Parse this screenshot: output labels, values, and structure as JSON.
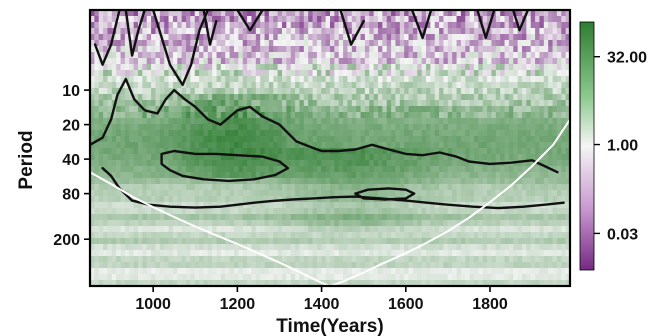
{
  "chart_data": {
    "type": "heatmap",
    "subtype": "wavelet power spectrum",
    "xlabel": "Time(Years)",
    "ylabel": "Period",
    "xlim": [
      850,
      1990
    ],
    "x_ticks": [
      1000,
      1200,
      1400,
      1600,
      1800
    ],
    "x_tick_labels": [
      "1000",
      "1200",
      "1400",
      "1600",
      "1800"
    ],
    "y_scale": "log",
    "y_reversed": true,
    "ylim": [
      2,
      512
    ],
    "y_ticks": [
      10,
      20,
      40,
      80,
      200
    ],
    "y_tick_labels": [
      "10",
      "20",
      "40",
      "80",
      "200"
    ],
    "colorbar": {
      "scale": "log",
      "ticks": [
        32.0,
        1.0,
        0.03
      ],
      "tick_labels": [
        "32.00",
        "1.00",
        "0.03"
      ],
      "colors": [
        "#2e7d32",
        "#f5f5f5",
        "#762a83"
      ]
    },
    "cone_of_influence": {
      "color": "#ffffff",
      "x": [
        850,
        900,
        950,
        1000,
        1050,
        1100,
        1150,
        1200,
        1250,
        1300,
        1350,
        1400,
        1420,
        1450,
        1500,
        1550,
        1600,
        1650,
        1700,
        1750,
        1800,
        1850,
        1900,
        1950,
        1990
      ],
      "period": [
        52,
        66,
        85,
        105,
        128,
        155,
        185,
        220,
        265,
        320,
        390,
        480,
        512,
        470,
        390,
        320,
        265,
        215,
        170,
        130,
        95,
        68,
        46,
        30,
        18
      ]
    },
    "significance_contours": [
      {
        "name": "high-frequency patches",
        "polylines": [
          [
            [
              862,
              4
            ],
            [
              880,
              6
            ],
            [
              900,
              4
            ],
            [
              920,
              2
            ]
          ],
          [
            [
              935,
              2
            ],
            [
              950,
              5
            ],
            [
              965,
              3
            ],
            [
              980,
              2
            ]
          ],
          [
            [
              1000,
              2
            ],
            [
              1040,
              6
            ],
            [
              1070,
              9
            ],
            [
              1090,
              6
            ],
            [
              1110,
              3
            ],
            [
              1130,
              2
            ]
          ],
          [
            [
              1120,
              2
            ],
            [
              1135,
              4
            ],
            [
              1150,
              2.5
            ]
          ],
          [
            [
              1200,
              2
            ],
            [
              1230,
              3
            ],
            [
              1260,
              2
            ]
          ],
          [
            [
              1445,
              2
            ],
            [
              1470,
              4
            ],
            [
              1500,
              2.5
            ]
          ],
          [
            [
              1615,
              2
            ],
            [
              1640,
              3.5
            ],
            [
              1660,
              2
            ]
          ],
          [
            [
              1770,
              2
            ],
            [
              1790,
              3.5
            ],
            [
              1810,
              2
            ]
          ],
          [
            [
              1855,
              2
            ],
            [
              1870,
              3
            ],
            [
              1890,
              2
            ]
          ]
        ]
      },
      {
        "name": "left region",
        "polylines": [
          [
            [
              850,
              30
            ],
            [
              880,
              26
            ],
            [
              900,
              18
            ],
            [
              915,
              11
            ],
            [
              935,
              8
            ],
            [
              955,
              12
            ],
            [
              980,
              15
            ],
            [
              1010,
              16
            ],
            [
              1030,
              12
            ],
            [
              1050,
              10
            ],
            [
              1075,
              12
            ],
            [
              1100,
              14
            ],
            [
              1130,
              18
            ],
            [
              1160,
              20
            ],
            [
              1200,
              15
            ],
            [
              1230,
              14
            ],
            [
              1260,
              17
            ],
            [
              1300,
              20
            ],
            [
              1340,
              28
            ],
            [
              1380,
              32
            ],
            [
              1400,
              34
            ],
            [
              1440,
              34
            ],
            [
              1480,
              33
            ],
            [
              1520,
              30
            ],
            [
              1560,
              33
            ],
            [
              1600,
              36
            ],
            [
              1640,
              37
            ],
            [
              1680,
              35
            ],
            [
              1720,
              38
            ],
            [
              1750,
              42
            ],
            [
              1800,
              44
            ],
            [
              1850,
              43
            ],
            [
              1900,
              41
            ],
            [
              1930,
              46
            ],
            [
              1960,
              52
            ]
          ]
        ]
      },
      {
        "name": "central band",
        "polylines": [
          [
            [
              1020,
              36
            ],
            [
              1050,
              34
            ],
            [
              1100,
              36
            ],
            [
              1150,
              36
            ],
            [
              1200,
              37
            ],
            [
              1260,
              38
            ],
            [
              1300,
              42
            ],
            [
              1320,
              48
            ],
            [
              1290,
              55
            ],
            [
              1240,
              60
            ],
            [
              1180,
              62
            ],
            [
              1120,
              60
            ],
            [
              1070,
              56
            ],
            [
              1040,
              50
            ],
            [
              1020,
              44
            ],
            [
              1020,
              36
            ]
          ]
        ]
      },
      {
        "name": "deep low-frequency loop",
        "polylines": [
          [
            [
              880,
              48
            ],
            [
              900,
              56
            ],
            [
              920,
              72
            ],
            [
              950,
              92
            ],
            [
              990,
              100
            ],
            [
              1040,
              104
            ],
            [
              1100,
              106
            ],
            [
              1160,
              104
            ],
            [
              1200,
              100
            ],
            [
              1240,
              96
            ],
            [
              1280,
              93
            ],
            [
              1330,
              90
            ],
            [
              1380,
              88
            ],
            [
              1430,
              86
            ],
            [
              1480,
              85
            ],
            [
              1540,
              88
            ],
            [
              1600,
              92
            ],
            [
              1650,
              96
            ],
            [
              1700,
              100
            ],
            [
              1760,
              104
            ],
            [
              1820,
              107
            ],
            [
              1880,
              104
            ],
            [
              1930,
              100
            ],
            [
              1975,
              96
            ]
          ]
        ]
      },
      {
        "name": "right low-frequency patch",
        "polylines": [
          [
            [
              1480,
              80
            ],
            [
              1510,
              74
            ],
            [
              1560,
              72
            ],
            [
              1600,
              74
            ],
            [
              1620,
              80
            ],
            [
              1600,
              88
            ],
            [
              1550,
              90
            ],
            [
              1500,
              88
            ],
            [
              1480,
              80
            ]
          ]
        ]
      }
    ]
  }
}
